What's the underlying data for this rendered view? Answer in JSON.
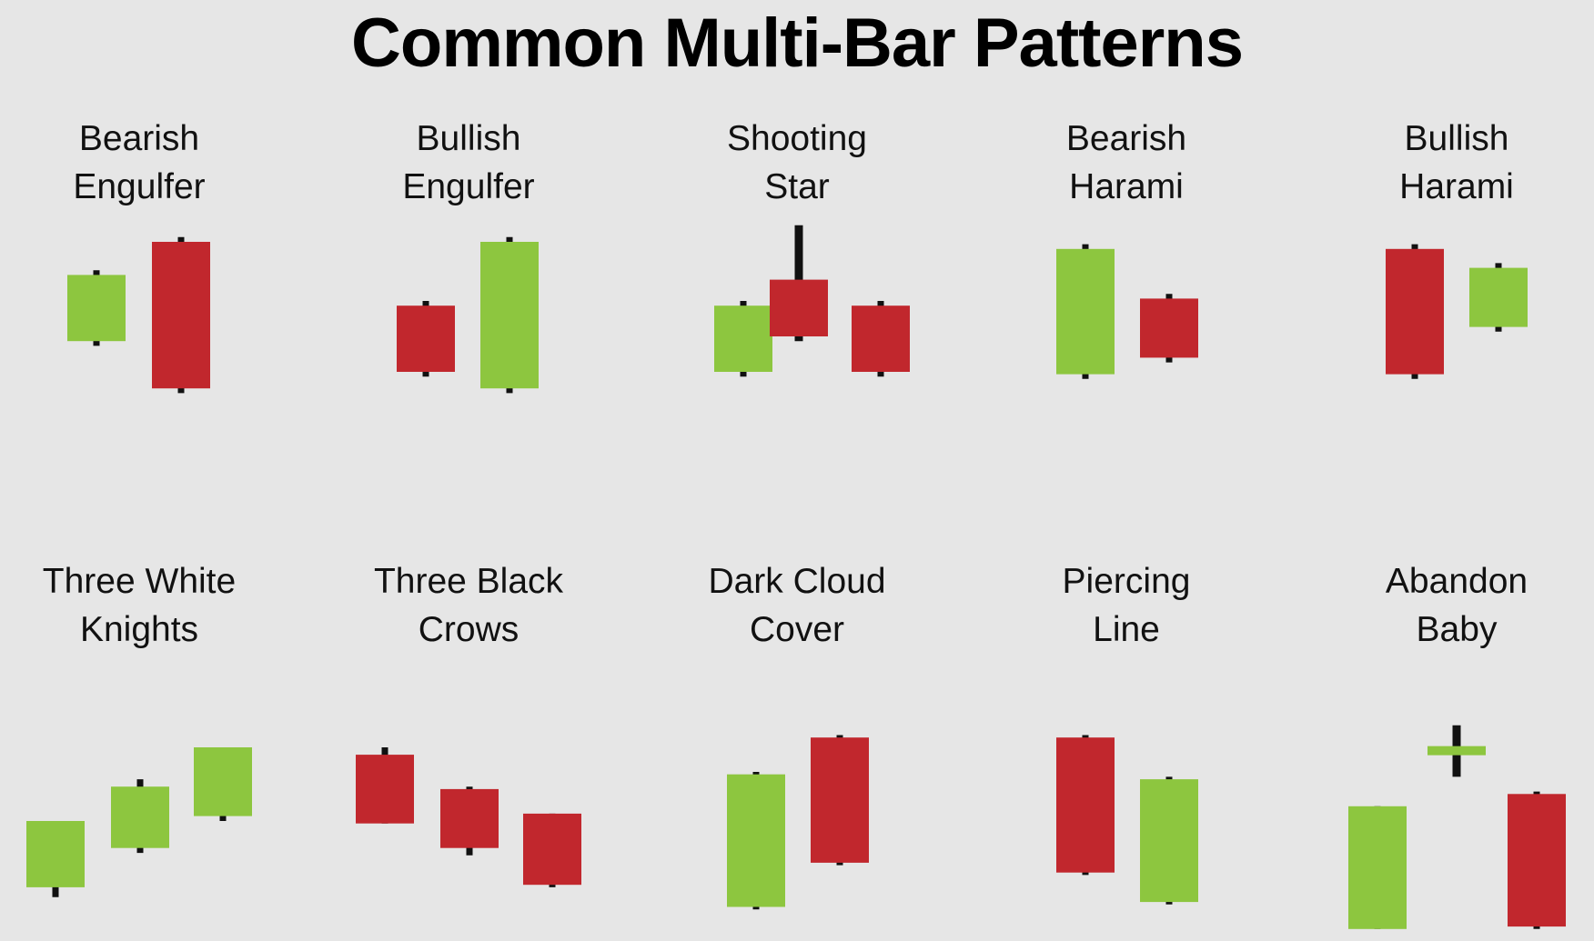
{
  "title": "Common Multi-Bar Patterns",
  "colors": {
    "bull": "#8dc63f",
    "bear": "#c1272d",
    "wick": "#111111",
    "background": "#e6e6e6"
  },
  "patterns": [
    {
      "id": "bearish-engulfer",
      "line1": "Bearish",
      "line2": "Engulfer",
      "candles": [
        {
          "type": "bull",
          "high": 7.8,
          "open": 4.8,
          "close": 7.6,
          "low": 4.6
        },
        {
          "type": "bear",
          "high": 9.2,
          "open": 9.0,
          "close": 2.8,
          "low": 2.6
        }
      ]
    },
    {
      "id": "bullish-engulfer",
      "line1": "Bullish",
      "line2": "Engulfer",
      "candles": [
        {
          "type": "bear",
          "high": 6.5,
          "open": 6.3,
          "close": 3.5,
          "low": 3.3
        },
        {
          "type": "bull",
          "high": 9.2,
          "open": 2.8,
          "close": 9.0,
          "low": 2.6
        }
      ]
    },
    {
      "id": "shooting-star",
      "line1": "Shooting",
      "line2": "Star",
      "candles": [
        {
          "type": "bull",
          "high": 6.5,
          "open": 3.5,
          "close": 6.3,
          "low": 3.3
        },
        {
          "type": "bear",
          "high": 9.7,
          "open": 7.4,
          "close": 5.0,
          "low": 4.8
        },
        {
          "type": "bear",
          "high": 6.5,
          "open": 6.3,
          "close": 3.5,
          "low": 3.3
        }
      ]
    },
    {
      "id": "bearish-harami",
      "line1": "Bearish",
      "line2": "Harami",
      "candles": [
        {
          "type": "bull",
          "high": 8.9,
          "open": 3.4,
          "close": 8.7,
          "low": 3.2
        },
        {
          "type": "bear",
          "high": 6.8,
          "open": 6.6,
          "close": 4.1,
          "low": 3.9
        }
      ]
    },
    {
      "id": "bullish-harami",
      "line1": "Bullish",
      "line2": "Harami",
      "candles": [
        {
          "type": "bear",
          "high": 8.9,
          "open": 8.7,
          "close": 3.4,
          "low": 3.2
        },
        {
          "type": "bull",
          "high": 8.1,
          "open": 5.4,
          "close": 7.9,
          "low": 5.2
        }
      ]
    },
    {
      "id": "three-white-knights",
      "line1": "Three White",
      "line2": "Knights",
      "candles": [
        {
          "type": "bull",
          "high": 5.0,
          "open": 2.3,
          "close": 5.0,
          "low": 1.9
        },
        {
          "type": "bull",
          "high": 6.7,
          "open": 3.9,
          "close": 6.4,
          "low": 3.7
        },
        {
          "type": "bull",
          "high": 8.0,
          "open": 5.2,
          "close": 8.0,
          "low": 5.0
        }
      ]
    },
    {
      "id": "three-black-crows",
      "line1": "Three Black",
      "line2": "Crows",
      "candles": [
        {
          "type": "bear",
          "high": 8.0,
          "open": 7.7,
          "close": 4.9,
          "low": 4.9
        },
        {
          "type": "bear",
          "high": 6.4,
          "open": 6.3,
          "close": 3.9,
          "low": 3.6
        },
        {
          "type": "bear",
          "high": 5.3,
          "open": 5.3,
          "close": 2.4,
          "low": 2.3
        }
      ]
    },
    {
      "id": "dark-cloud-cover",
      "line1": "Dark Cloud",
      "line2": "Cover",
      "candles": [
        {
          "type": "bull",
          "high": 7.0,
          "open": 1.5,
          "close": 6.9,
          "low": 1.4
        },
        {
          "type": "bear",
          "high": 8.5,
          "open": 8.4,
          "close": 3.3,
          "low": 3.2
        }
      ]
    },
    {
      "id": "piercing-line",
      "line1": "Piercing",
      "line2": "Line",
      "candles": [
        {
          "type": "bear",
          "high": 8.5,
          "open": 8.4,
          "close": 2.9,
          "low": 2.8
        },
        {
          "type": "bull",
          "high": 6.8,
          "open": 1.7,
          "close": 6.7,
          "low": 1.6
        }
      ]
    },
    {
      "id": "abandon-baby",
      "line1": "Abandon",
      "line2": "Baby",
      "candles": [
        {
          "type": "bull",
          "high": 5.6,
          "open": 0.6,
          "close": 5.6,
          "low": 0.6
        },
        {
          "type": "bull",
          "high": 8.9,
          "open": 7.95,
          "close": 8.05,
          "low": 6.8
        },
        {
          "type": "bear",
          "high": 6.2,
          "open": 6.1,
          "close": 0.7,
          "low": 0.6
        }
      ]
    }
  ]
}
